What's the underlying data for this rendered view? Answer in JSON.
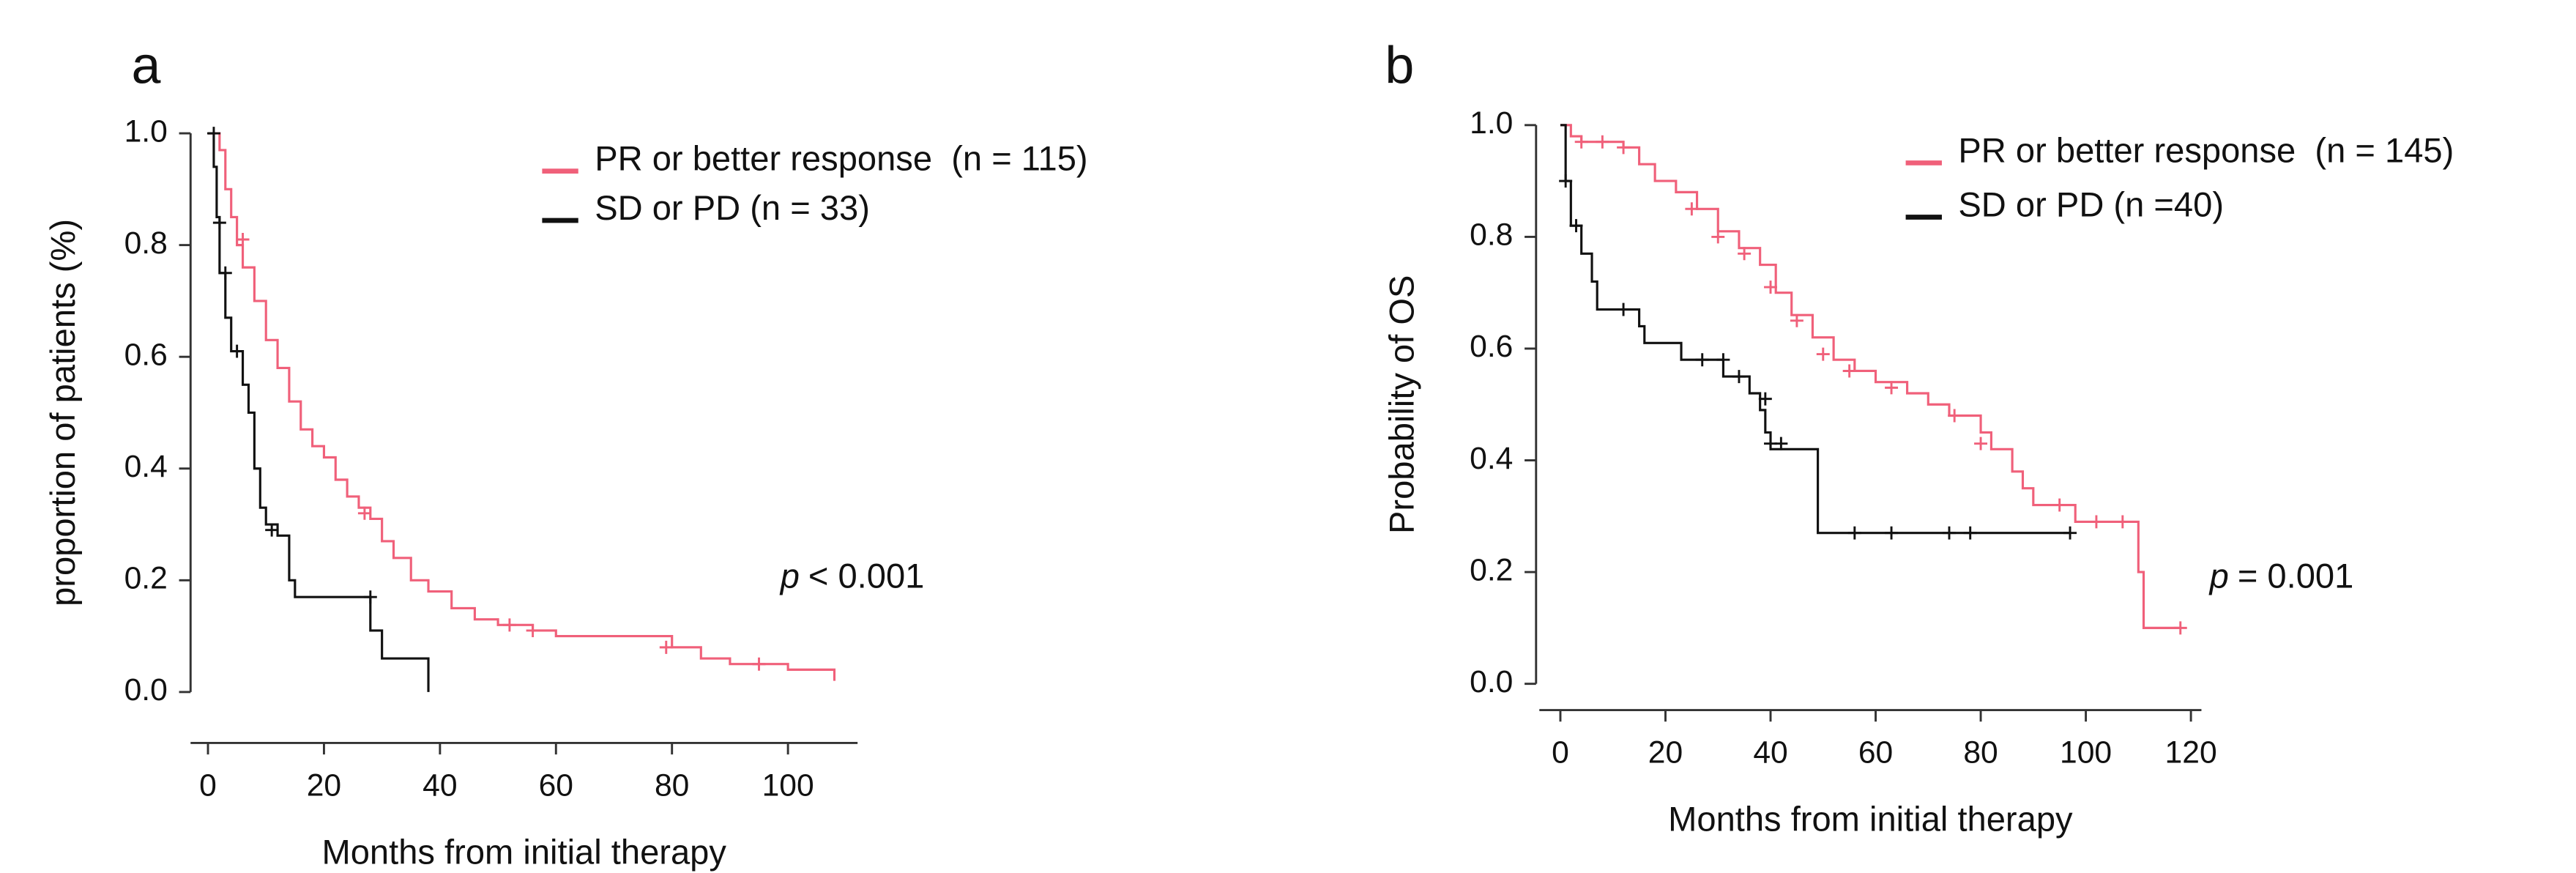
{
  "chart_data": [
    {
      "type": "line",
      "panel": "a",
      "step": true,
      "xlabel": "Months from initial therapy",
      "ylabel": "proportion of patients (%)",
      "annotation_italic": "p",
      "annotation": "< 0.001",
      "xlim": [
        -3,
        112
      ],
      "ylim": [
        0,
        1
      ],
      "xticks": [
        0,
        20,
        40,
        60,
        80,
        100
      ],
      "yticks": [
        {
          "value": 0,
          "label": "0.0"
        },
        0.2,
        0.4,
        0.6,
        0.8,
        {
          "value": 1,
          "label": "1.0"
        }
      ],
      "series": [
        {
          "name": "PR or better response  (n = 115)",
          "color": "#f0607a",
          "x": [
            0,
            2,
            3,
            4,
            5,
            6,
            8,
            10,
            12,
            14,
            16,
            18,
            20,
            22,
            24,
            26,
            28,
            30,
            32,
            35,
            38,
            42,
            46,
            50,
            56,
            60,
            70,
            80,
            85,
            90,
            100,
            108
          ],
          "values": [
            1.0,
            0.97,
            0.9,
            0.85,
            0.8,
            0.76,
            0.7,
            0.63,
            0.58,
            0.52,
            0.47,
            0.44,
            0.42,
            0.38,
            0.35,
            0.33,
            0.31,
            0.27,
            0.24,
            0.2,
            0.18,
            0.15,
            0.13,
            0.12,
            0.11,
            0.1,
            0.1,
            0.08,
            0.06,
            0.05,
            0.04,
            0.02
          ],
          "censor_x": [
            6,
            27,
            52,
            56,
            79,
            95
          ],
          "censor_values": [
            0.81,
            0.32,
            0.12,
            0.11,
            0.08,
            0.05
          ]
        },
        {
          "name": "SD or PD (n = 33)",
          "color": "#111111",
          "x": [
            0,
            1,
            1.5,
            2,
            3,
            4,
            6,
            7,
            8,
            9,
            10,
            12,
            14,
            15,
            27,
            28,
            30,
            38
          ],
          "values": [
            1.0,
            0.94,
            0.85,
            0.75,
            0.67,
            0.61,
            0.55,
            0.5,
            0.4,
            0.33,
            0.3,
            0.28,
            0.2,
            0.17,
            0.17,
            0.11,
            0.06,
            0.0
          ],
          "censor_x": [
            1,
            2,
            3,
            5,
            11,
            28
          ],
          "censor_values": [
            1.0,
            0.84,
            0.75,
            0.61,
            0.29,
            0.17
          ]
        }
      ]
    },
    {
      "type": "line",
      "panel": "b",
      "step": true,
      "xlabel": "Months from initial therapy",
      "ylabel": "Probability of OS",
      "annotation_italic": "p",
      "annotation": "= 0.001",
      "xlim": [
        -4,
        122
      ],
      "ylim": [
        0,
        1
      ],
      "xticks": [
        0,
        20,
        40,
        60,
        80,
        100,
        120
      ],
      "yticks": [
        {
          "value": 0,
          "label": "0.0"
        },
        0.2,
        0.4,
        0.6,
        0.8,
        {
          "value": 1,
          "label": "1.0"
        }
      ],
      "series": [
        {
          "name": "PR or better response  (n = 145)",
          "color": "#f0607a",
          "x": [
            0,
            2,
            4,
            12,
            15,
            18,
            22,
            26,
            30,
            34,
            38,
            41,
            44,
            48,
            52,
            56,
            60,
            66,
            70,
            74,
            80,
            82,
            86,
            88,
            90,
            96,
            98,
            110,
            111,
            118
          ],
          "values": [
            1.0,
            0.98,
            0.97,
            0.96,
            0.93,
            0.9,
            0.88,
            0.85,
            0.81,
            0.78,
            0.75,
            0.7,
            0.66,
            0.62,
            0.58,
            0.56,
            0.54,
            0.52,
            0.5,
            0.48,
            0.45,
            0.42,
            0.38,
            0.35,
            0.32,
            0.32,
            0.29,
            0.2,
            0.1,
            0.1
          ],
          "censor_x": [
            4,
            8,
            12,
            25,
            30,
            35,
            40,
            45,
            50,
            55,
            63,
            75,
            80,
            95,
            102,
            107,
            118
          ],
          "censor_values": [
            0.97,
            0.97,
            0.96,
            0.85,
            0.8,
            0.77,
            0.71,
            0.65,
            0.59,
            0.56,
            0.53,
            0.48,
            0.43,
            0.32,
            0.29,
            0.29,
            0.1
          ]
        },
        {
          "name": "SD or PD (n =40)",
          "color": "#111111",
          "x": [
            0,
            1,
            2,
            4,
            6,
            7,
            15,
            16,
            23,
            31,
            36,
            38,
            39,
            40,
            48,
            49,
            97
          ],
          "values": [
            1.0,
            0.9,
            0.82,
            0.77,
            0.72,
            0.67,
            0.64,
            0.61,
            0.58,
            0.55,
            0.52,
            0.49,
            0.45,
            0.42,
            0.42,
            0.27,
            0.27
          ],
          "censor_x": [
            1,
            3,
            12,
            27,
            31,
            34,
            39,
            40,
            42,
            56,
            63,
            74,
            78,
            97
          ],
          "censor_values": [
            0.9,
            0.82,
            0.67,
            0.58,
            0.58,
            0.55,
            0.51,
            0.43,
            0.43,
            0.27,
            0.27,
            0.27,
            0.27,
            0.27
          ]
        }
      ]
    }
  ]
}
